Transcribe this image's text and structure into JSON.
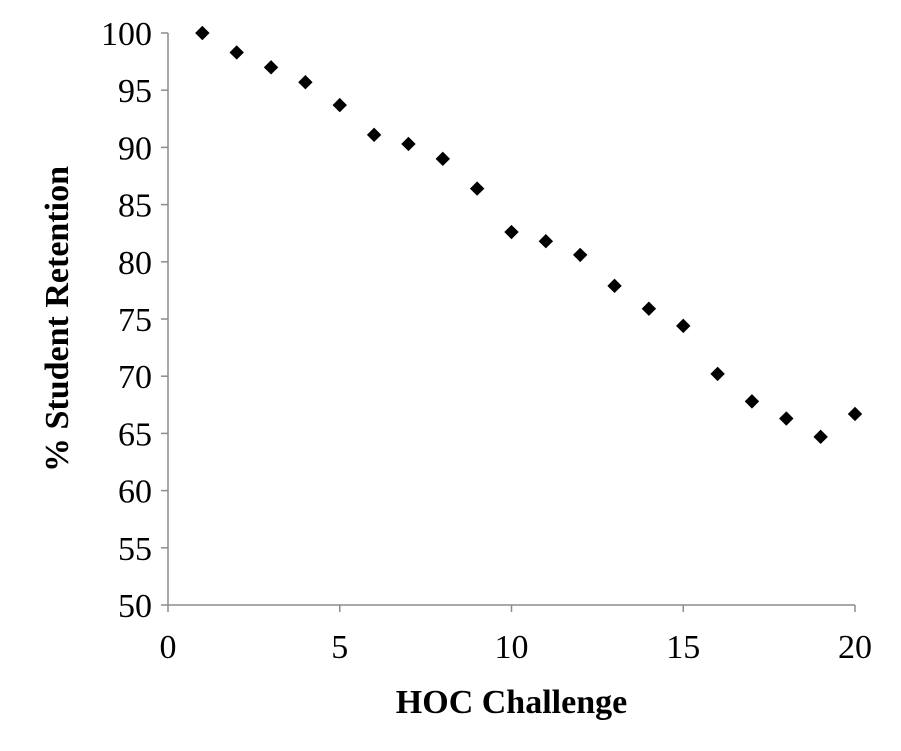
{
  "chart_data": {
    "type": "scatter",
    "title": "",
    "xlabel": "HOC Challenge",
    "ylabel": "% Student Retention",
    "xlim": [
      0,
      20
    ],
    "ylim": [
      50,
      100
    ],
    "xticks": [
      0,
      5,
      10,
      15,
      20
    ],
    "yticks": [
      50,
      55,
      60,
      65,
      70,
      75,
      80,
      85,
      90,
      95,
      100
    ],
    "grid": false,
    "legend": "none",
    "marker": "diamond",
    "marker_color": "#000000",
    "series": [
      {
        "x": [
          1,
          2,
          3,
          4,
          5,
          6,
          7,
          8,
          9,
          10,
          11,
          12,
          13,
          14,
          15,
          16,
          17,
          18,
          19,
          20
        ],
        "y": [
          100,
          98.3,
          97.0,
          95.7,
          93.7,
          91.1,
          90.3,
          89.0,
          86.4,
          82.6,
          81.8,
          80.6,
          77.9,
          75.9,
          74.4,
          70.2,
          67.8,
          66.3,
          64.7,
          66.7
        ]
      }
    ]
  }
}
